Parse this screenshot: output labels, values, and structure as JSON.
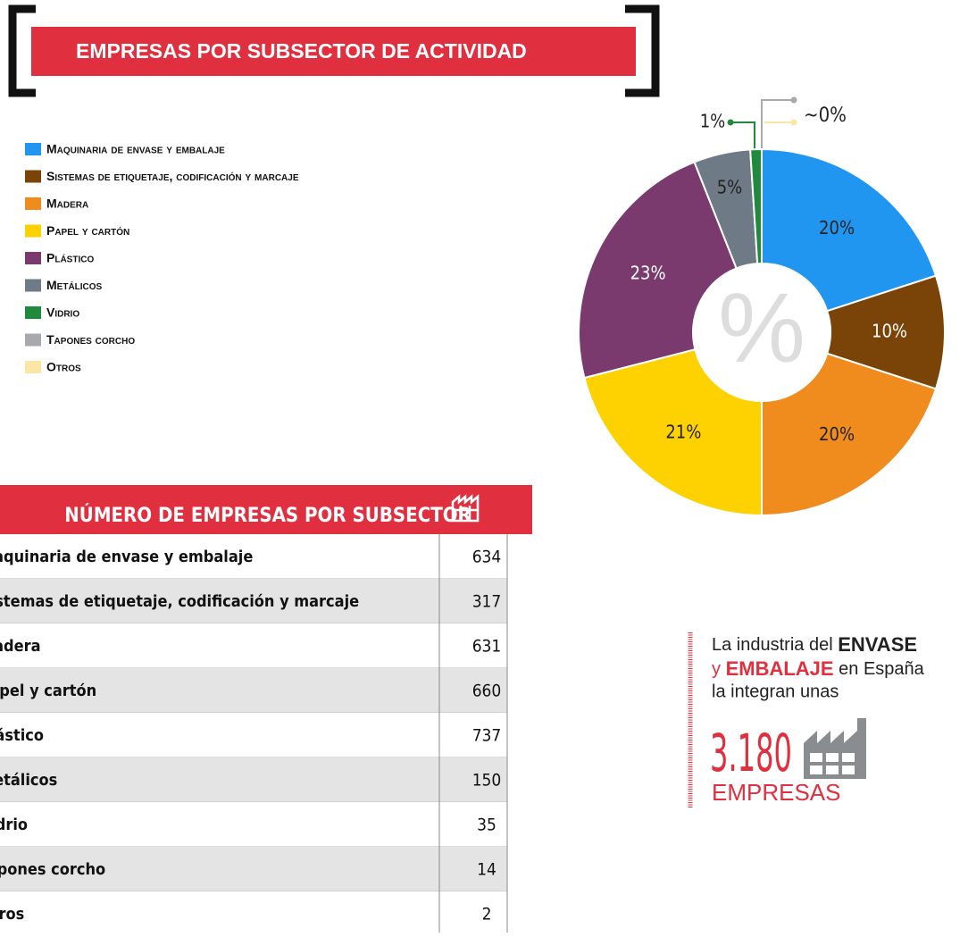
{
  "title": "EMPRESAS POR SUBSECTOR DE ACTIVIDAD",
  "chart_data": {
    "type": "pie",
    "categories": [
      "Maquinaria de envase y embalaje",
      "Sistemas de etiquetaje, codificación y marcaje",
      "Madera",
      "Papel y cartón",
      "Plástico",
      "Metálicos",
      "Vidrio",
      "Tapones corcho",
      "Otros"
    ],
    "values": [
      20,
      10,
      20,
      21,
      23,
      5,
      1,
      0,
      0
    ],
    "value_labels": [
      "20%",
      "10%",
      "20%",
      "21%",
      "23%",
      "5%",
      "1%",
      null,
      null
    ],
    "colors": [
      "#2196f0",
      "#7a4408",
      "#f08c1e",
      "#fdd200",
      "#7b3a6e",
      "#6f7a87",
      "#1f8a3c",
      "#a7a9ac",
      "#fbe6a6"
    ],
    "center_label": "%",
    "annotations": [
      "~0%"
    ]
  },
  "table": {
    "title": "NÚMERO DE EMPRESAS POR SUBSECTOR",
    "rows": [
      [
        "Maquinaria de envase y embalaje",
        634
      ],
      [
        "Sistemas de etiquetaje, codificación y marcaje",
        317
      ],
      [
        "Madera",
        631
      ],
      [
        "Papel y cartón",
        660
      ],
      [
        "Plástico",
        737
      ],
      [
        "Metálicos",
        150
      ],
      [
        "Vidrio",
        35
      ],
      [
        "Tapones corcho",
        14
      ],
      [
        "Otros",
        2
      ]
    ]
  },
  "callout": {
    "parts": [
      "La industria del ",
      "ENVASE",
      "y ",
      "EMBALAJE",
      " en España",
      "la integran unas"
    ],
    "number": "3.180",
    "unit": "EMPRESAS"
  }
}
